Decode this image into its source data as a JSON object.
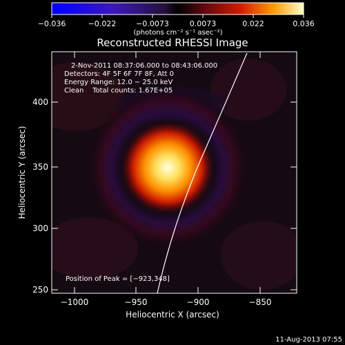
{
  "colorbar": {
    "tick_labels": [
      "−0.036",
      "−0.022",
      "−0.0073",
      "0.0073",
      "0.022",
      "0.036"
    ],
    "unit_label": "(photons cm⁻² s⁻¹ asec⁻²)",
    "range": [
      -0.036,
      0.036
    ]
  },
  "title": "Reconstructed RHESSI Image",
  "info": {
    "time_range": "2-Nov-2011 08:37:06.000 to 08:43:06.000",
    "detectors": "Detectors: 4F 5F 6F 7F 8F, Att 0",
    "energy": "Energy Range: 12.0 − 25.0 keV",
    "clean": "Clean    Total counts: 1.67E+05"
  },
  "peak_label": "Position of Peak = [−923,348]",
  "axes": {
    "xlabel": "Heliocentric X (arcsec)",
    "ylabel": "Heliocentric Y (arcsec)",
    "x_ticks": [
      "−1000",
      "−950",
      "−900",
      "−850"
    ],
    "y_ticks": [
      "250",
      "300",
      "350",
      "400"
    ]
  },
  "footer_timestamp": "11-Aug-2013 07:55"
}
